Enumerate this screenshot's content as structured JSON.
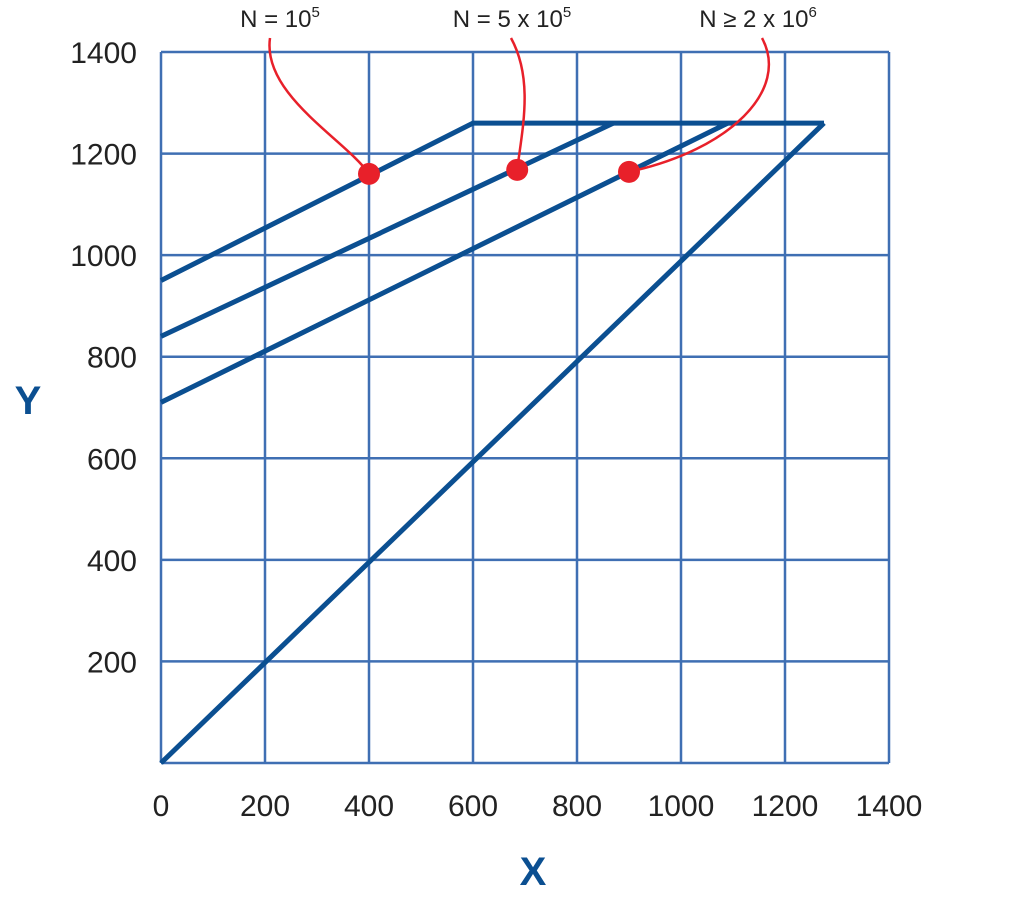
{
  "chart_data": {
    "type": "line",
    "xlabel": "X",
    "ylabel": "Y",
    "xlim": [
      0,
      1400
    ],
    "ylim": [
      0,
      1400
    ],
    "xticks": [
      "0",
      "200",
      "400",
      "600",
      "800",
      "1000",
      "1200",
      "1400"
    ],
    "yticks": [
      "200",
      "400",
      "600",
      "800",
      "1000",
      "1200",
      "1400"
    ],
    "grid": true,
    "series": [
      {
        "x": [
          0,
          1275
        ],
        "y": [
          0,
          1260
        ]
      },
      {
        "x": [
          0,
          600,
          1275
        ],
        "y": [
          950,
          1260,
          1260
        ]
      },
      {
        "x": [
          0,
          870
        ],
        "y": [
          840,
          1260
        ]
      },
      {
        "x": [
          0,
          1090
        ],
        "y": [
          710,
          1260
        ]
      }
    ],
    "annotations": [
      {
        "base": "N = 10",
        "exp": "5",
        "point": {
          "x": 400,
          "y": 1160
        }
      },
      {
        "base": "N = 5 x 10",
        "exp": "5",
        "point": {
          "x": 685,
          "y": 1168
        }
      },
      {
        "base": "N ≥ 2 x 10",
        "exp": "6",
        "point": {
          "x": 900,
          "y": 1164
        }
      }
    ],
    "colors": {
      "line": "#0b4f91",
      "grid": "#3f6fb3",
      "marker": "#e8202a",
      "leader": "#e8202a"
    }
  }
}
